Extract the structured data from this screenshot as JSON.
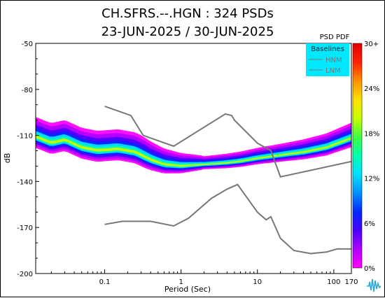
{
  "title_line1": "CH.SFRS.--.HGN : 324 PSDs",
  "title_line2": "23-JUN-2025 / 30-JUN-2025",
  "chart_data": {
    "type": "heatmap",
    "title": "CH.SFRS.--.HGN : 324 PSDs",
    "subtitle": "23-JUN-2025 / 30-JUN-2025",
    "xlabel": "Period (Sec)",
    "ylabel": "dB",
    "x_scale": "log",
    "xlim": [
      0.0125,
      170
    ],
    "ylim": [
      -200,
      -50
    ],
    "x_ticks": [
      {
        "value": 0.1,
        "label": "0.1"
      },
      {
        "value": 1,
        "label": "1"
      },
      {
        "value": 10,
        "label": "10"
      },
      {
        "value": 100,
        "label": "100"
      },
      {
        "value": 170,
        "label": "170"
      }
    ],
    "y_ticks": [
      {
        "value": -50,
        "label": "-50"
      },
      {
        "value": -80,
        "label": "-80"
      },
      {
        "value": -110,
        "label": "-110"
      },
      {
        "value": -140,
        "label": "-140"
      },
      {
        "value": -170,
        "label": "-170"
      },
      {
        "value": -200,
        "label": "-200"
      }
    ],
    "colorbar": {
      "title": "PSD PDF",
      "ticks": [
        "30+",
        "24%",
        "18%",
        "12%",
        "6%",
        "0%"
      ],
      "colors": [
        "#ff00ff",
        "#b000ff",
        "#4b00ff",
        "#0028ff",
        "#0090ff",
        "#00e0ff",
        "#00ffb0",
        "#40ff40",
        "#c8ff00",
        "#ffe000",
        "#ff9000",
        "#ff2000",
        "#e00000"
      ]
    },
    "legend": {
      "title": "Baselines",
      "entries": [
        "HNM",
        "LNM"
      ],
      "placement": "top-right"
    },
    "series": [
      {
        "name": "HNM",
        "color": "#777777",
        "points": [
          [
            0.1,
            -91
          ],
          [
            0.22,
            -97
          ],
          [
            0.32,
            -110
          ],
          [
            0.8,
            -117
          ],
          [
            3.8,
            -96
          ],
          [
            4.6,
            -97
          ],
          [
            5,
            -100
          ],
          [
            10,
            -115
          ],
          [
            15,
            -120
          ],
          [
            20,
            -137
          ],
          [
            170,
            -127
          ]
        ]
      },
      {
        "name": "LNM",
        "color": "#777777",
        "points": [
          [
            0.1,
            -168
          ],
          [
            0.17,
            -166
          ],
          [
            0.4,
            -166
          ],
          [
            0.8,
            -169
          ],
          [
            1.25,
            -164
          ],
          [
            2.5,
            -151
          ],
          [
            4,
            -145
          ],
          [
            5.5,
            -142
          ],
          [
            10,
            -160
          ],
          [
            13,
            -165
          ],
          [
            15,
            -163
          ],
          [
            20,
            -177
          ],
          [
            30,
            -185
          ],
          [
            50,
            -187
          ],
          [
            80,
            -186
          ],
          [
            110,
            -184
          ],
          [
            170,
            -184
          ]
        ]
      }
    ],
    "density_mode": [
      [
        0.0125,
        -111
      ],
      [
        0.02,
        -115
      ],
      [
        0.03,
        -113
      ],
      [
        0.05,
        -118
      ],
      [
        0.08,
        -120
      ],
      [
        0.15,
        -119
      ],
      [
        0.25,
        -121
      ],
      [
        0.4,
        -126
      ],
      [
        0.6,
        -129
      ],
      [
        1,
        -130
      ],
      [
        2,
        -129
      ],
      [
        4,
        -128
      ],
      [
        6,
        -127
      ],
      [
        10,
        -125
      ],
      [
        20,
        -123
      ],
      [
        40,
        -121
      ],
      [
        80,
        -118
      ],
      [
        170,
        -112
      ]
    ]
  }
}
